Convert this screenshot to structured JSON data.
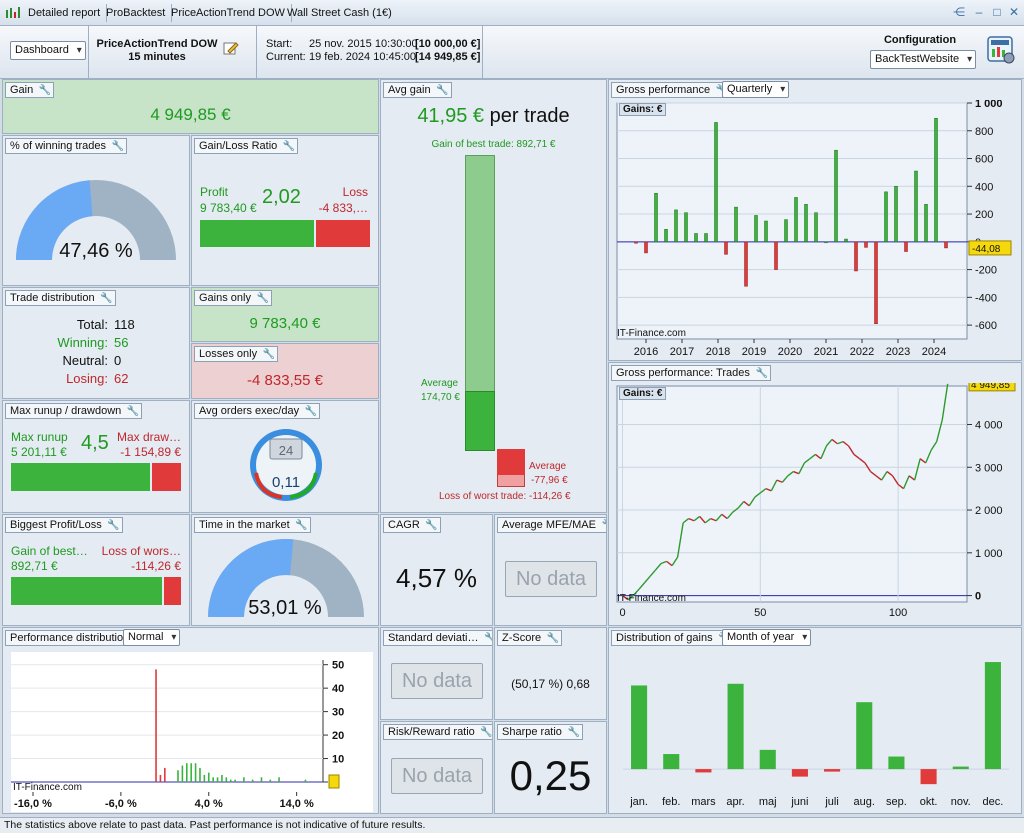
{
  "tabs": [
    "Detailed report",
    "ProBacktest",
    "PriceActionTrend DOW",
    "Wall Street Cash (1€)"
  ],
  "header": {
    "dashboard_select": "Dashboard",
    "strategy_name": "PriceActionTrend DOW",
    "timeframe": "15 minutes",
    "start_label": "Start:",
    "start_date": "25 nov. 2015 10:30:00",
    "start_value": "[10 000,00 €]",
    "current_label": "Current:",
    "current_date": "19 feb. 2024 10:45:00",
    "current_value": "[14 949,85 €]",
    "config_label": "Configuration",
    "config_select": "BackTestWebsite"
  },
  "gain": {
    "title": "Gain",
    "value": "4 949,85 €"
  },
  "winning_trades": {
    "title": "% of winning trades",
    "value": "47,46 %",
    "fraction": 0.4746
  },
  "gain_loss_ratio": {
    "title": "Gain/Loss Ratio",
    "profit_label": "Profit",
    "profit_value": "9 783,40 €",
    "ratio": "2,02",
    "loss_label": "Loss",
    "loss_value": "-4 833,…",
    "profit_share": 0.669
  },
  "trade_distribution": {
    "title": "Trade distribution",
    "total_label": "Total:",
    "total": "118",
    "winning_label": "Winning:",
    "winning": "56",
    "neutral_label": "Neutral:",
    "neutral": "0",
    "losing_label": "Losing:",
    "losing": "62"
  },
  "gains_only": {
    "title": "Gains only",
    "value": "9 783,40 €"
  },
  "losses_only": {
    "title": "Losses only",
    "value": "-4 833,55 €"
  },
  "runup": {
    "title": "Max runup / drawdown",
    "runup_label": "Max runup",
    "runup_value": "5 201,11 €",
    "ratio": "4,5",
    "drawdown_label": "Max draw…",
    "drawdown_value": "-1 154,89 €",
    "runup_share": 0.818
  },
  "avg_orders": {
    "title": "Avg orders exec/day",
    "value": "0,11",
    "day_number": "24"
  },
  "biggest": {
    "title": "Biggest Profit/Loss",
    "gain_label": "Gain of best…",
    "gain_value": "892,71 €",
    "loss_label": "Loss of wors…",
    "loss_value": "-114,26 €",
    "gain_share": 0.887
  },
  "time_market": {
    "title": "Time in the market",
    "value": "53,01 %",
    "fraction": 0.5301
  },
  "avg_gain": {
    "title": "Avg gain",
    "value": "41,95 €",
    "unit": "per trade",
    "best_label": "Gain of best trade: 892,71 €",
    "avg_label": "Average",
    "avg_value": "174,70 €",
    "loss_avg_label": "Average",
    "loss_avg_value": "-77,96 €",
    "worst_label": "Loss of worst trade: -114,26 €"
  },
  "cagr": {
    "title": "CAGR",
    "value": "4,57 %"
  },
  "mfe_mae": {
    "title": "Average MFE/MAE",
    "value": "No data"
  },
  "std_dev": {
    "title": "Standard deviati…",
    "value": "No data"
  },
  "zscore": {
    "title": "Z-Score",
    "value": "(50,17 %) 0,68"
  },
  "risk_reward": {
    "title": "Risk/Reward ratio",
    "value": "No data"
  },
  "sharpe": {
    "title": "Sharpe ratio",
    "value": "0,25"
  },
  "perf_dist": {
    "title": "Performance distribution",
    "select": "Normal",
    "watermark": "IT-Finance.com"
  },
  "gross_perf": {
    "title": "Gross performance",
    "select": "Quarterly",
    "legend": "Gains: €",
    "watermark": "IT-Finance.com",
    "last_value": "-44,08"
  },
  "gross_trades": {
    "title": "Gross performance: Trades",
    "legend": "Gains: €",
    "watermark": "IT-Finance.com",
    "last_value": "4 949,85"
  },
  "dist_gains": {
    "title": "Distribution of gains",
    "select": "Month of year"
  },
  "footer": "The statistics above relate to past data. Past performance is not indicative of future results.",
  "colors": {
    "green": "#3cb33c",
    "red": "#e03a3a",
    "gauge_blue": "#6aaaf5",
    "gauge_gray": "#9fb3c4"
  },
  "chart_data": [
    {
      "type": "bar",
      "title": "Gross performance",
      "x_tick_labels": [
        "2016",
        "2017",
        "2018",
        "2019",
        "2020",
        "2021",
        "2022",
        "2023",
        "2024"
      ],
      "y_tick_labels": [
        "1 000",
        "800",
        "600",
        "400",
        "200",
        "0",
        "-200",
        "-400",
        "-600"
      ],
      "ylim": [
        -700,
        1000
      ],
      "series": [
        {
          "values": [
            -10,
            -80,
            350,
            90,
            230,
            210,
            60,
            60,
            860,
            -90,
            250,
            -320,
            190,
            150,
            -200,
            160,
            320,
            270,
            210,
            0,
            660,
            20,
            -210,
            -40,
            -590,
            360,
            400,
            -70,
            510,
            270,
            890,
            -44
          ]
        }
      ],
      "last_value_label": "-44,08"
    },
    {
      "type": "line",
      "title": "Gross performance: Trades",
      "x_tick_labels": [
        "0",
        "50",
        "100"
      ],
      "y_tick_labels": [
        "4 000",
        "3 000",
        "2 000",
        "1 000",
        "0"
      ],
      "xlim": [
        -2,
        125
      ],
      "ylim": [
        -150,
        4900
      ],
      "x": [
        0,
        2,
        4,
        6,
        8,
        10,
        12,
        14,
        16,
        18,
        20,
        22,
        24,
        26,
        28,
        30,
        32,
        34,
        36,
        38,
        40,
        42,
        44,
        46,
        48,
        50,
        52,
        54,
        56,
        58,
        60,
        62,
        64,
        66,
        68,
        70,
        72,
        74,
        76,
        78,
        80,
        82,
        84,
        86,
        88,
        90,
        92,
        94,
        96,
        98,
        100,
        102,
        104,
        106,
        108,
        110,
        112,
        114,
        116,
        118
      ],
      "values": [
        0,
        -100,
        10,
        150,
        300,
        450,
        600,
        750,
        800,
        700,
        900,
        1700,
        1800,
        1750,
        1850,
        1700,
        1800,
        1750,
        1900,
        1800,
        1950,
        2050,
        2200,
        2100,
        2300,
        2400,
        2500,
        2450,
        2700,
        2650,
        2800,
        2900,
        2850,
        3100,
        3200,
        3300,
        3200,
        3500,
        3650,
        3550,
        3600,
        3500,
        3300,
        3200,
        3100,
        2900,
        2800,
        2700,
        2900,
        2800,
        2600,
        2500,
        2800,
        2700,
        3200,
        3100,
        3400,
        3600,
        4100,
        4950
      ],
      "last_value_label": "4 949,85"
    },
    {
      "type": "bar",
      "title": "Performance distribution",
      "x_tick_labels": [
        "-16,0 %",
        "-6,0 %",
        "4,0 %",
        "14,0 %"
      ],
      "y_tick_labels": [
        "50",
        "40",
        "30",
        "20",
        "10",
        "0"
      ],
      "ylim": [
        0,
        52
      ],
      "x": [
        -2.0,
        -1.5,
        -1.0,
        0.5,
        1.0,
        1.5,
        2.0,
        2.5,
        3.0,
        3.5,
        4.0,
        4.5,
        5.0,
        5.5,
        6.0,
        6.5,
        7.0,
        8.0,
        9.0,
        10.0,
        11.0,
        12.0,
        15.0
      ],
      "values": [
        48,
        3,
        6,
        5,
        7,
        8,
        8,
        8,
        6,
        3,
        4,
        2,
        2,
        3,
        2,
        1,
        1,
        2,
        1,
        2,
        1,
        2,
        1
      ]
    },
    {
      "type": "bar",
      "title": "Distribution of gains",
      "categories": [
        "jan.",
        "feb.",
        "mars",
        "apr.",
        "maj",
        "juni",
        "juli",
        "aug.",
        "sep.",
        "okt.",
        "nov.",
        "dec."
      ],
      "values": [
        1000,
        180,
        -40,
        1020,
        230,
        -90,
        -30,
        800,
        150,
        -180,
        30,
        1280
      ],
      "ylim": [
        -250,
        1400
      ]
    }
  ]
}
